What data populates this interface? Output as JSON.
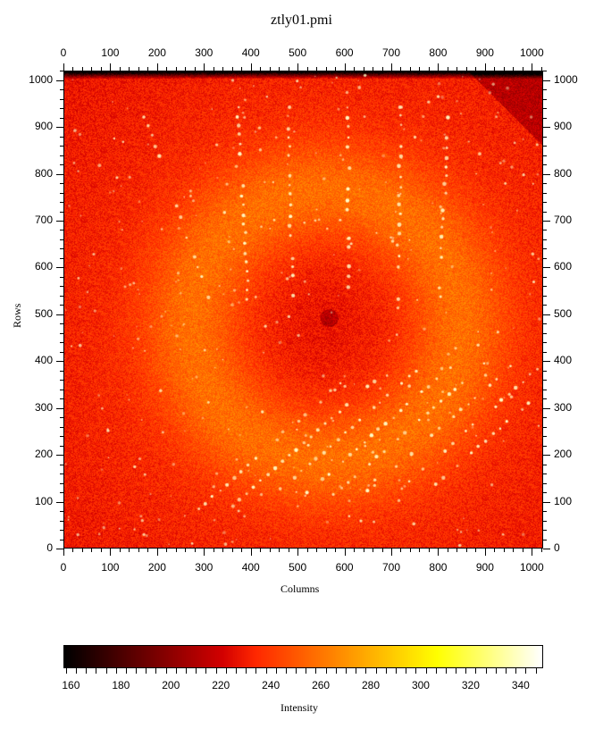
{
  "title": "ztly01.pmi",
  "x_axis": {
    "label": "Columns",
    "ticks": [
      "0",
      "100",
      "200",
      "300",
      "400",
      "500",
      "600",
      "700",
      "800",
      "900",
      "1000"
    ],
    "range": [
      0,
      1024
    ]
  },
  "y_axis": {
    "label": "Rows",
    "ticks": [
      "0",
      "100",
      "200",
      "300",
      "400",
      "500",
      "600",
      "700",
      "800",
      "900",
      "1000"
    ],
    "range": [
      0,
      1024
    ]
  },
  "colorbar": {
    "label": "Intensity",
    "ticks": [
      "160",
      "180",
      "200",
      "220",
      "240",
      "260",
      "280",
      "300",
      "320",
      "340"
    ],
    "range": [
      157,
      349
    ],
    "colormap": "hot",
    "stops": [
      "#000000",
      "#7a0000",
      "#e60000",
      "#ff4d10",
      "#ff8c1a",
      "#ffb020",
      "#ffe000",
      "#ffff00",
      "#ffff90",
      "#ffffff"
    ]
  },
  "image": {
    "description": "X-ray diffraction detector frame with central beam stop and lattice spot rows",
    "background_color": "#ff5a14",
    "ring_color": "#ffa020",
    "beam_stop_center": [
      565,
      495
    ],
    "beam_stop_color": "#e62a00"
  }
}
